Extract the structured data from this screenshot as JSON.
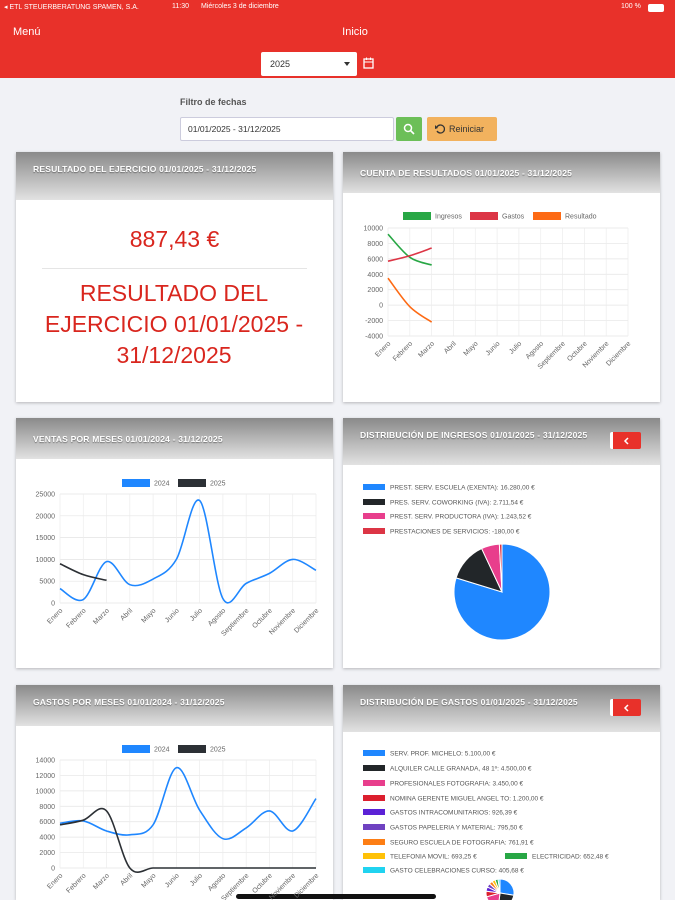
{
  "status_bar": {
    "carrier": "◂ ETL STEUERBERATUNG SPAMEN, S.A.",
    "time": "11:30",
    "date": "Miércoles 3 de diciembre",
    "battery": "100 %"
  },
  "header": {
    "menu": "Menú",
    "title": "Inicio",
    "year": "2025"
  },
  "filter": {
    "label": "Filtro de fechas",
    "range": "01/01/2025 - 31/12/2025",
    "reset": "Reiniciar"
  },
  "result_card": {
    "title": "RESULTADO DEL EJERCICIO 01/01/2025 - 31/12/2025",
    "amount": "887,43 €",
    "heading": "RESULTADO DEL EJERCICIO 01/01/2025 - 31/12/2025"
  },
  "chart_data": [
    {
      "type": "line",
      "title": "CUENTA DE RESULTADOS 01/01/2025 - 31/12/2025",
      "categories": [
        "Enero",
        "Febrero",
        "Marzo",
        "Abril",
        "Mayo",
        "Junio",
        "Julio",
        "Agosto",
        "Septiembre",
        "Octubre",
        "Noviembre",
        "Diciembre"
      ],
      "series": [
        {
          "name": "Ingresos",
          "color": "#28a745",
          "values": [
            9200,
            6200,
            5200,
            null,
            null,
            null,
            null,
            null,
            null,
            null,
            null,
            null
          ]
        },
        {
          "name": "Gastos",
          "color": "#dc3545",
          "values": [
            5700,
            6400,
            7400,
            null,
            null,
            null,
            null,
            null,
            null,
            null,
            null,
            null
          ]
        },
        {
          "name": "Resultado",
          "color": "#fd6a14",
          "values": [
            3500,
            -200,
            -2200,
            null,
            null,
            null,
            null,
            null,
            null,
            null,
            null,
            null
          ]
        }
      ],
      "ylim": [
        -4000,
        10000
      ],
      "yticks": [
        -4000,
        -2000,
        0,
        2000,
        4000,
        6000,
        8000,
        10000
      ],
      "grid": true
    },
    {
      "type": "line",
      "title": "VENTAS POR MESES 01/01/2024 - 31/12/2025",
      "categories": [
        "Enero",
        "Febrero",
        "Marzo",
        "Abril",
        "Mayo",
        "Junio",
        "Julio",
        "Agosto",
        "Septiembre",
        "Octubre",
        "Noviembre",
        "Diciembre"
      ],
      "series": [
        {
          "name": "2024",
          "color": "#1f87ff",
          "values": [
            3300,
            800,
            9500,
            4200,
            5500,
            10000,
            23500,
            1000,
            4500,
            6800,
            10000,
            7500
          ]
        },
        {
          "name": "2025",
          "color": "#2c3035",
          "values": [
            9000,
            6500,
            5200,
            null,
            null,
            null,
            null,
            null,
            null,
            null,
            null,
            null
          ]
        }
      ],
      "ylim": [
        0,
        25000
      ],
      "yticks": [
        0,
        5000,
        10000,
        15000,
        20000,
        25000
      ],
      "grid": true
    },
    {
      "type": "line",
      "title": "GASTOS POR MESES 01/01/2024 - 31/12/2025",
      "categories": [
        "Enero",
        "Febrero",
        "Marzo",
        "Abril",
        "Mayo",
        "Junio",
        "Julio",
        "Agosto",
        "Septiembre",
        "Octubre",
        "Noviembre",
        "Diciembre"
      ],
      "series": [
        {
          "name": "2024",
          "color": "#1f87ff",
          "values": [
            5800,
            6100,
            4800,
            4300,
            5600,
            13000,
            7500,
            3800,
            5200,
            7400,
            4800,
            9000
          ]
        },
        {
          "name": "2025",
          "color": "#2c3035",
          "values": [
            5600,
            6200,
            7400,
            0,
            0,
            0,
            0,
            0,
            0,
            0,
            0,
            0
          ]
        }
      ],
      "ylim": [
        0,
        14000
      ],
      "yticks": [
        0,
        2000,
        4000,
        6000,
        8000,
        10000,
        12000,
        14000
      ],
      "grid": true
    },
    {
      "type": "pie",
      "title": "DISTRIBUCIÓN DE INGRESOS 01/01/2025 - 31/12/2025",
      "categories": [
        "PREST. SERV. ESCUELA (EXENTA)",
        "PRES. SERV. COWORKING (IVA)",
        "PREST. SERV. PRODUCTORA (IVA)",
        "PRESTACIONES DE SERVICIOS"
      ],
      "values": [
        16280,
        2711.54,
        1243.52,
        -180
      ],
      "value_labels": [
        "PREST. SERV. ESCUELA (EXENTA): 16.280,00 €",
        "PRES. SERV. COWORKING (IVA): 2.711,54 €",
        "PREST. SERV. PRODUCTORA (IVA): 1.243,52 €",
        "PRESTACIONES DE SERVICIOS: -180,00 €"
      ],
      "colors": [
        "#1f87ff",
        "#222629",
        "#e83e8c",
        "#dc3545"
      ]
    },
    {
      "type": "pie",
      "title": "DISTRIBUCIÓN DE GASTOS 01/01/2025 - 31/12/2025",
      "categories": [
        "SERV. PROF. MICHELO",
        "ALQUILER CALLE GRANADA, 48 1º",
        "PROFESIONALES FOTOGRAFIA",
        "NOMINA GERENTE MIGUEL ANGEL TO",
        "GASTOS INTRACOMUNITARIOS",
        "GASTOS PAPELERIA Y MATERIAL",
        "SEGURO ESCUELA DE FOTOGRAFIA",
        "TELEFONIA MOVIL",
        "ELECTRICIDAD",
        "GASTO CELEBRACIONES CURSO"
      ],
      "values": [
        5100,
        4500,
        3450,
        1200,
        926.39,
        795.5,
        761.91,
        693.25,
        652.48,
        405.68
      ],
      "value_labels": [
        "SERV. PROF. MICHELO: 5.100,00 €",
        "ALQUILER CALLE GRANADA, 48 1º: 4.500,00 €",
        "PROFESIONALES FOTOGRAFIA: 3.450,00 €",
        "NOMINA GERENTE MIGUEL ANGEL TO: 1.200,00 €",
        "GASTOS INTRACOMUNITARIOS: 926,39 €",
        "GASTOS PAPELERIA Y MATERIAL: 795,50 €",
        "SEGURO ESCUELA DE FOTOGRAFIA: 761,91 €",
        "TELEFONIA MOVIL: 693,25 €",
        "ELECTRICIDAD: 652,48 €",
        "GASTO CELEBRACIONES CURSO: 405,68 €"
      ],
      "colors": [
        "#1f87ff",
        "#222629",
        "#e83e8c",
        "#dc1f2e",
        "#5b21d6",
        "#6f42c1",
        "#fd7e14",
        "#ffc107",
        "#28a745",
        "#20d3f0"
      ]
    }
  ]
}
